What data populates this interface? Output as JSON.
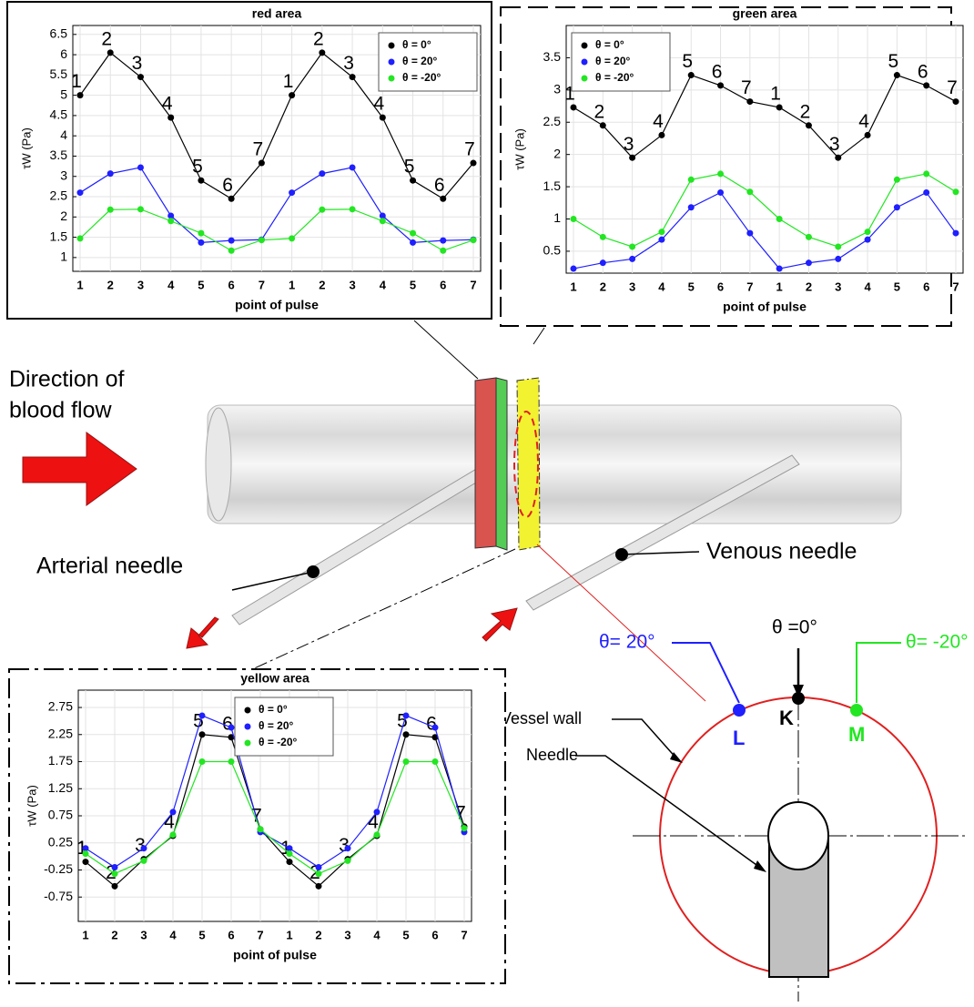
{
  "chart_data": [
    {
      "type": "line",
      "title": "red area",
      "xlabel": "point of pulse",
      "ylabel": "τW (Pa)",
      "categories": [
        "1",
        "2",
        "3",
        "4",
        "5",
        "6",
        "7",
        "1",
        "2",
        "3",
        "4",
        "5",
        "6",
        "7"
      ],
      "ylim": [
        0.66,
        6.72
      ],
      "yticks": [
        1,
        1.5,
        2,
        2.5,
        3,
        3.5,
        4,
        4.5,
        5,
        5.5,
        6,
        6.5
      ],
      "grid": true,
      "legend": "upper right",
      "series": [
        {
          "name": "θ = 0°",
          "color": "#000000",
          "values": [
            5,
            6.05,
            5.45,
            4.45,
            2.9,
            2.45,
            3.33,
            5,
            6.05,
            5.45,
            4.45,
            2.9,
            2.45,
            3.33
          ]
        },
        {
          "name": "θ = 20°",
          "color": "#1f1fff",
          "values": [
            2.6,
            3.07,
            3.22,
            2.03,
            1.37,
            1.42,
            1.44,
            2.6,
            3.07,
            3.22,
            2.03,
            1.37,
            1.42,
            1.44
          ]
        },
        {
          "name": "θ = -20°",
          "color": "#22e622",
          "values": [
            1.47,
            2.18,
            2.19,
            1.9,
            1.6,
            1.17,
            1.43,
            1.47,
            2.18,
            2.19,
            1.9,
            1.6,
            1.17,
            1.43
          ]
        }
      ]
    },
    {
      "type": "line",
      "title": "green area",
      "xlabel": "point of pulse",
      "ylabel": "τW (Pa)",
      "categories": [
        "1",
        "2",
        "3",
        "4",
        "5",
        "6",
        "7",
        "1",
        "2",
        "3",
        "4",
        "5",
        "6",
        "7"
      ],
      "ylim": [
        0.16,
        4.0
      ],
      "yticks": [
        0.5,
        1,
        1.5,
        2,
        2.5,
        3,
        3.5
      ],
      "grid": true,
      "legend": "upper left",
      "series": [
        {
          "name": "θ = 0°",
          "color": "#000000",
          "values": [
            2.73,
            2.45,
            1.95,
            2.3,
            3.23,
            3.07,
            2.82,
            2.73,
            2.45,
            1.95,
            2.3,
            3.23,
            3.07,
            2.82
          ]
        },
        {
          "name": "θ = 20°",
          "color": "#1f1fff",
          "values": [
            0.23,
            0.32,
            0.38,
            0.68,
            1.18,
            1.41,
            0.78,
            0.23,
            0.32,
            0.38,
            0.68,
            1.18,
            1.41,
            0.78
          ]
        },
        {
          "name": "θ = -20°",
          "color": "#22e622",
          "values": [
            1.0,
            0.72,
            0.57,
            0.8,
            1.61,
            1.7,
            1.42,
            1.0,
            0.72,
            0.57,
            0.8,
            1.61,
            1.7,
            1.42
          ]
        }
      ]
    },
    {
      "type": "line",
      "title": "yellow area",
      "xlabel": "point of pulse",
      "ylabel": "τW (Pa)",
      "categories": [
        "1",
        "2",
        "3",
        "4",
        "5",
        "6",
        "7",
        "1",
        "2",
        "3",
        "4",
        "5",
        "6",
        "7"
      ],
      "ylim": [
        -1.2,
        3.07
      ],
      "yticks": [
        -0.75,
        -0.25,
        0.25,
        0.75,
        1.25,
        1.75,
        2.25,
        2.75
      ],
      "grid": true,
      "legend": "upper center",
      "series": [
        {
          "name": "θ = 0°",
          "color": "#000000",
          "values": [
            -0.1,
            -0.55,
            -0.05,
            0.38,
            2.25,
            2.2,
            0.5,
            -0.1,
            -0.55,
            -0.05,
            0.38,
            2.25,
            2.2,
            0.55
          ]
        },
        {
          "name": "θ = 20°",
          "color": "#1f1fff",
          "values": [
            0.15,
            -0.2,
            0.15,
            0.82,
            2.6,
            2.38,
            0.45,
            0.15,
            -0.2,
            0.15,
            0.82,
            2.6,
            2.38,
            0.45
          ]
        },
        {
          "name": "θ = -20°",
          "color": "#22e622",
          "values": [
            0.05,
            -0.32,
            -0.08,
            0.4,
            1.75,
            1.75,
            0.5,
            0.05,
            -0.32,
            -0.08,
            0.4,
            1.75,
            1.75,
            0.52
          ]
        }
      ]
    }
  ],
  "diagram": {
    "flow_line1": "Direction of",
    "flow_line2": "blood flow",
    "arterial": "Arterial needle",
    "venous": "Venous needle",
    "theta0": "θ =0°",
    "theta20": "θ= 20°",
    "theta_neg20": "θ= -20°",
    "K": "K",
    "L": "L",
    "M": "M",
    "vessel_wall": "Vessel wall",
    "needle": "Needle"
  }
}
